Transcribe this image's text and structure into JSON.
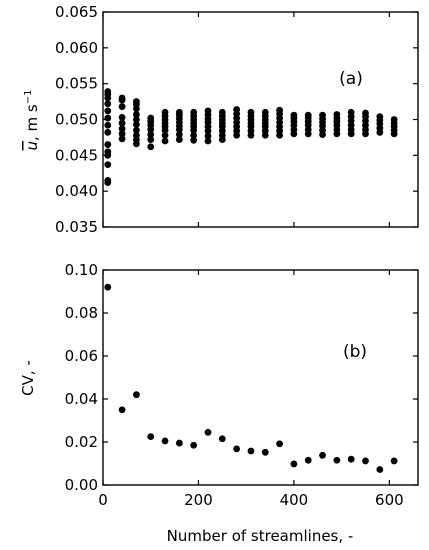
{
  "figure": {
    "xlabel": "Number of streamlines, -"
  },
  "chart_data": [
    {
      "panel": "(a)",
      "type": "scatter",
      "ylabel": "ū, m s⁻¹",
      "ylabel_parts": {
        "symbol": "u",
        "rest": ", m s",
        "exp": "−1"
      },
      "xlim": [
        0,
        660
      ],
      "ylim": [
        0.035,
        0.065
      ],
      "xticks": [
        0,
        200,
        400,
        600
      ],
      "xtick_labels": [
        "",
        "",
        "",
        ""
      ],
      "yticks": [
        0.035,
        0.04,
        0.045,
        0.05,
        0.055,
        0.06,
        0.065
      ],
      "ytick_labels": [
        "0.035",
        "0.040",
        "0.045",
        "0.050",
        "0.055",
        "0.060",
        "0.065"
      ],
      "grid": false,
      "color": "#000000",
      "groups": [
        {
          "x": 10,
          "y": [
            0.0412,
            0.0415,
            0.0437,
            0.045,
            0.0455,
            0.0465,
            0.0482,
            0.0492,
            0.0502,
            0.0512,
            0.0522,
            0.053,
            0.0535,
            0.0539
          ]
        },
        {
          "x": 40,
          "y": [
            0.0473,
            0.048,
            0.0487,
            0.0495,
            0.0503,
            0.0518,
            0.0527,
            0.053
          ]
        },
        {
          "x": 70,
          "y": [
            0.0466,
            0.0472,
            0.0478,
            0.0485,
            0.0493,
            0.05,
            0.0507,
            0.0515,
            0.0521,
            0.0525
          ]
        },
        {
          "x": 100,
          "y": [
            0.0462,
            0.0472,
            0.0479,
            0.0486,
            0.0492,
            0.0497,
            0.0502
          ]
        },
        {
          "x": 130,
          "y": [
            0.047,
            0.0478,
            0.0485,
            0.049,
            0.0495,
            0.05,
            0.0505,
            0.051
          ]
        },
        {
          "x": 160,
          "y": [
            0.0472,
            0.0479,
            0.0486,
            0.0491,
            0.0496,
            0.0501,
            0.0506,
            0.051
          ]
        },
        {
          "x": 190,
          "y": [
            0.0471,
            0.0478,
            0.0485,
            0.049,
            0.0495,
            0.05,
            0.0505,
            0.051
          ]
        },
        {
          "x": 220,
          "y": [
            0.047,
            0.0477,
            0.0484,
            0.049,
            0.0496,
            0.0501,
            0.0507,
            0.0512
          ]
        },
        {
          "x": 250,
          "y": [
            0.0472,
            0.0478,
            0.0484,
            0.049,
            0.0495,
            0.05,
            0.0505,
            0.051
          ]
        },
        {
          "x": 280,
          "y": [
            0.0478,
            0.0484,
            0.049,
            0.0496,
            0.0502,
            0.0508,
            0.0514
          ]
        },
        {
          "x": 310,
          "y": [
            0.0478,
            0.0484,
            0.049,
            0.0495,
            0.05,
            0.0505,
            0.051
          ]
        },
        {
          "x": 340,
          "y": [
            0.0478,
            0.0484,
            0.049,
            0.0495,
            0.05,
            0.0505,
            0.051
          ]
        },
        {
          "x": 370,
          "y": [
            0.0478,
            0.0484,
            0.049,
            0.0496,
            0.0502,
            0.0508,
            0.0513
          ]
        },
        {
          "x": 400,
          "y": [
            0.048,
            0.0486,
            0.0492,
            0.0497,
            0.0502,
            0.0506
          ]
        },
        {
          "x": 430,
          "y": [
            0.048,
            0.0486,
            0.0492,
            0.0497,
            0.0502,
            0.0506
          ]
        },
        {
          "x": 460,
          "y": [
            0.0479,
            0.0485,
            0.0491,
            0.0496,
            0.0501,
            0.0506
          ]
        },
        {
          "x": 490,
          "y": [
            0.048,
            0.0486,
            0.0492,
            0.0497,
            0.0502,
            0.0507
          ]
        },
        {
          "x": 520,
          "y": [
            0.048,
            0.0486,
            0.0492,
            0.0498,
            0.0504,
            0.051
          ]
        },
        {
          "x": 550,
          "y": [
            0.048,
            0.0486,
            0.0492,
            0.0498,
            0.0504,
            0.0509
          ]
        },
        {
          "x": 580,
          "y": [
            0.0482,
            0.0488,
            0.0494,
            0.0499,
            0.0504
          ]
        },
        {
          "x": 610,
          "y": [
            0.048,
            0.0485,
            0.049,
            0.0495,
            0.05
          ]
        }
      ]
    },
    {
      "panel": "(b)",
      "type": "scatter",
      "ylabel": "CV, -",
      "xlim": [
        0,
        660
      ],
      "ylim": [
        0,
        0.1
      ],
      "xticks": [
        0,
        200,
        400,
        600
      ],
      "xtick_labels": [
        "0",
        "200",
        "400",
        "600"
      ],
      "yticks": [
        0,
        0.02,
        0.04,
        0.06,
        0.08,
        0.1
      ],
      "ytick_labels": [
        "0.00",
        "0.02",
        "0.04",
        "0.06",
        "0.08",
        "0.10"
      ],
      "grid": false,
      "color": "#000000",
      "x": [
        10,
        40,
        70,
        100,
        130,
        160,
        190,
        220,
        250,
        280,
        310,
        340,
        370,
        400,
        430,
        460,
        490,
        520,
        550,
        580,
        610
      ],
      "y": [
        0.092,
        0.035,
        0.042,
        0.0225,
        0.0205,
        0.0195,
        0.0185,
        0.0245,
        0.0215,
        0.0168,
        0.0158,
        0.0152,
        0.0192,
        0.0098,
        0.0115,
        0.0138,
        0.0115,
        0.012,
        0.0112,
        0.0072,
        0.0112
      ]
    }
  ]
}
